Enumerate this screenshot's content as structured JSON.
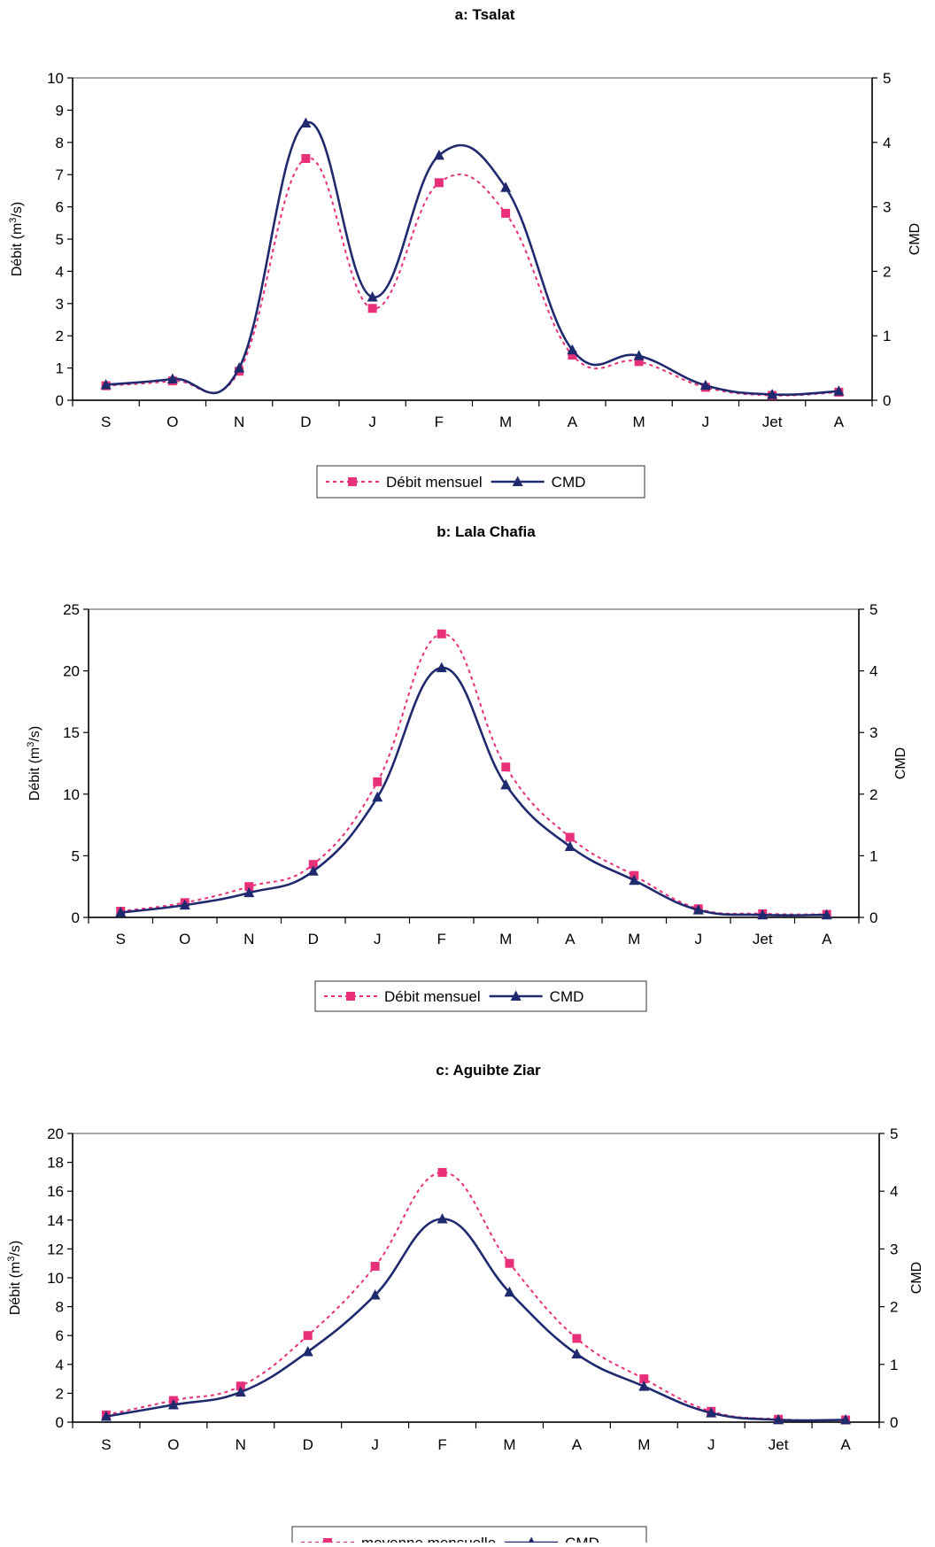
{
  "colors": {
    "debit": "#e8307a",
    "cmd": "#1f2a6e",
    "axis": "#000000",
    "plot_border": "#8a8a8a"
  },
  "chart_data": [
    {
      "type": "line",
      "title": "a: Tsalat",
      "ylabel": "Débit (m³/s)",
      "y2label": "CMD",
      "categories": [
        "S",
        "O",
        "N",
        "D",
        "J",
        "F",
        "M",
        "A",
        "M",
        "J",
        "Jet",
        "A"
      ],
      "ylim": [
        0,
        10
      ],
      "yticks": [
        0,
        1,
        2,
        3,
        4,
        5,
        6,
        7,
        8,
        9,
        10
      ],
      "y2lim": [
        0,
        5
      ],
      "y2ticks": [
        0,
        1,
        2,
        3,
        4,
        5
      ],
      "legend_position": "bottom",
      "series": [
        {
          "name": "Débit mensuel",
          "axis": "left",
          "style": "dashed",
          "marker": "square",
          "color": "#e8307a",
          "values": [
            0.45,
            0.6,
            0.9,
            7.5,
            2.85,
            6.75,
            5.8,
            1.4,
            1.2,
            0.4,
            0.15,
            0.25
          ]
        },
        {
          "name": "CMD",
          "axis": "right",
          "style": "solid",
          "marker": "triangle",
          "color": "#1f2a6e",
          "values": [
            0.24,
            0.33,
            0.5,
            4.3,
            1.6,
            3.8,
            3.3,
            0.78,
            0.69,
            0.23,
            0.09,
            0.14
          ]
        }
      ]
    },
    {
      "type": "line",
      "title": "b: Lala Chafia",
      "ylabel": "Débit (m³/s)",
      "y2label": "CMD",
      "categories": [
        "S",
        "O",
        "N",
        "D",
        "J",
        "F",
        "M",
        "A",
        "M",
        "J",
        "Jet",
        "A"
      ],
      "ylim": [
        0,
        25
      ],
      "yticks": [
        0,
        5,
        10,
        15,
        20,
        25
      ],
      "y2lim": [
        0,
        5
      ],
      "y2ticks": [
        0,
        1,
        2,
        3,
        4,
        5
      ],
      "legend_position": "bottom",
      "series": [
        {
          "name": "Débit mensuel",
          "axis": "left",
          "style": "dashed",
          "marker": "square",
          "color": "#e8307a",
          "values": [
            0.5,
            1.2,
            2.5,
            4.3,
            11,
            23,
            12.2,
            6.5,
            3.4,
            0.7,
            0.3,
            0.25
          ]
        },
        {
          "name": "CMD",
          "axis": "right",
          "style": "solid",
          "marker": "triangle",
          "color": "#1f2a6e",
          "values": [
            0.08,
            0.2,
            0.4,
            0.75,
            1.95,
            4.05,
            2.15,
            1.15,
            0.6,
            0.12,
            0.04,
            0.04
          ]
        }
      ]
    },
    {
      "type": "line",
      "title": "c: Aguibte Ziar",
      "ylabel": "Débit (m³/s)",
      "y2label": "CMD",
      "categories": [
        "S",
        "O",
        "N",
        "D",
        "J",
        "F",
        "M",
        "A",
        "M",
        "J",
        "Jet",
        "A"
      ],
      "ylim": [
        0,
        20
      ],
      "yticks": [
        0,
        2,
        4,
        6,
        8,
        10,
        12,
        14,
        16,
        18,
        20
      ],
      "y2lim": [
        0,
        5
      ],
      "y2ticks": [
        0,
        1,
        2,
        3,
        4,
        5
      ],
      "legend_position": "bottom",
      "series": [
        {
          "name": "moyenne mensuelle",
          "axis": "left",
          "style": "dashed",
          "marker": "square",
          "color": "#e8307a",
          "values": [
            0.5,
            1.5,
            2.5,
            6,
            10.8,
            17.3,
            11,
            5.8,
            3,
            0.75,
            0.2,
            0.15
          ]
        },
        {
          "name": "CMD",
          "axis": "right",
          "style": "solid",
          "marker": "triangle",
          "color": "#1f2a6e",
          "values": [
            0.1,
            0.3,
            0.52,
            1.22,
            2.2,
            3.52,
            2.25,
            1.18,
            0.62,
            0.16,
            0.04,
            0.04
          ]
        }
      ]
    }
  ]
}
